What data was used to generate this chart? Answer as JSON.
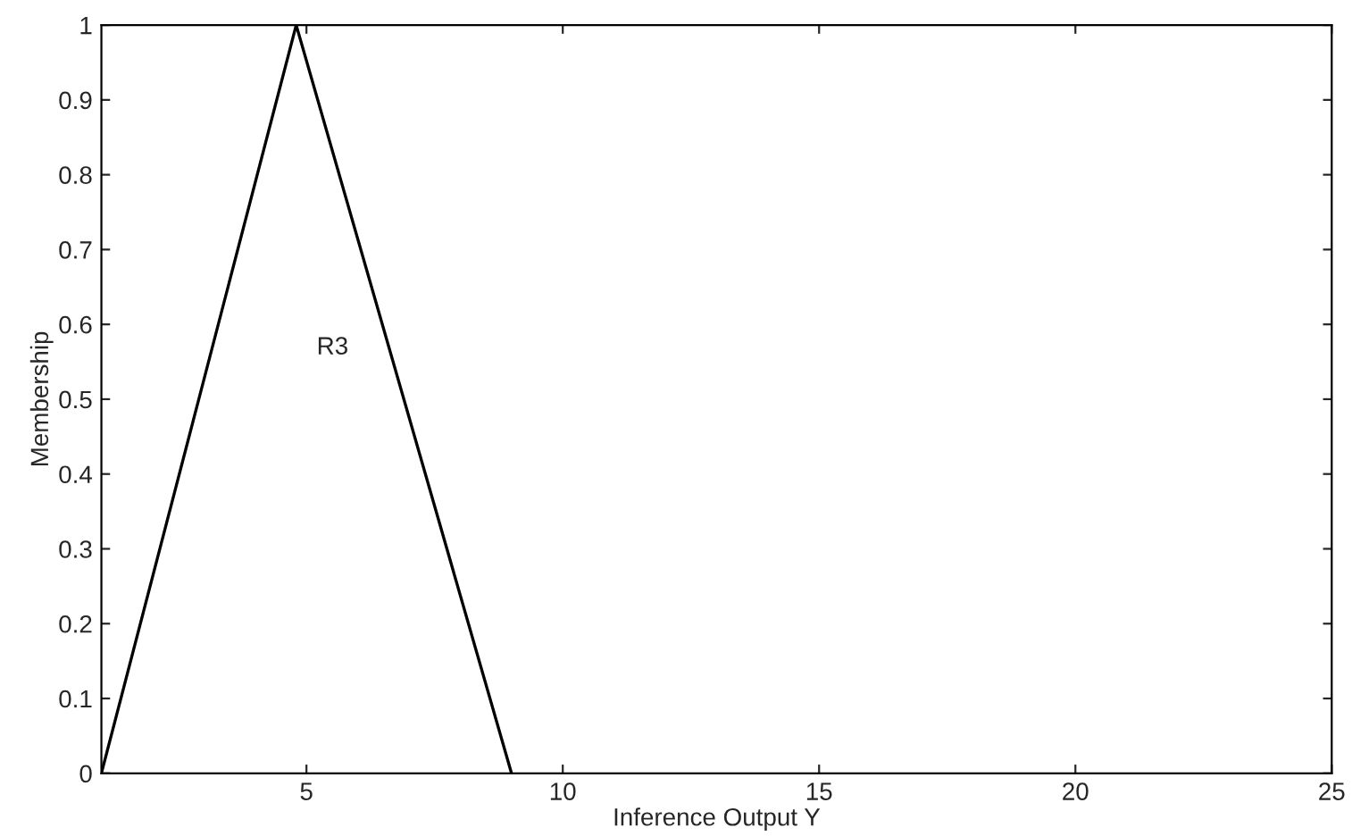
{
  "chart_data": {
    "type": "line",
    "xlabel": "Inference Output Y",
    "ylabel": "Membership",
    "x": [
      1,
      4.8,
      9
    ],
    "series": [
      {
        "color": "#000000",
        "values": [
          0,
          1,
          0
        ]
      }
    ],
    "xlim": [
      1,
      25
    ],
    "xticks": [
      5,
      10,
      15,
      20,
      25
    ],
    "ylim": [
      0,
      1
    ],
    "yticks": [
      0,
      0.1,
      0.2,
      0.3,
      0.4,
      0.5,
      0.6,
      0.7,
      0.8,
      0.9,
      1
    ],
    "annotations": [
      "R3"
    ],
    "grid": false,
    "legend": false
  }
}
